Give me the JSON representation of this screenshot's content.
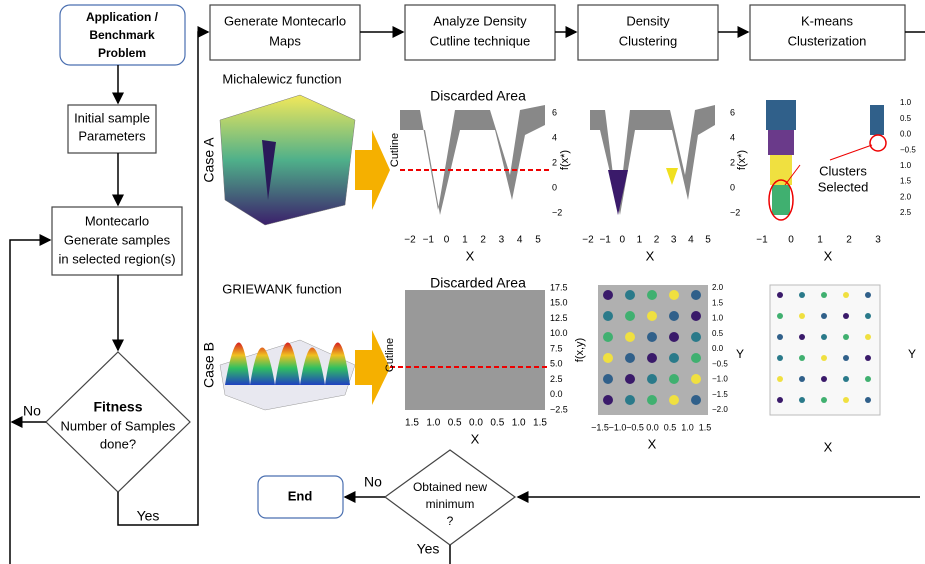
{
  "flow": {
    "start": [
      "Application /",
      "Benchmark",
      "Problem"
    ],
    "init": [
      "Initial sample",
      "Parameters"
    ],
    "montecarlo": [
      "Montecarlo",
      "Generate samples",
      "in selected region(s)"
    ],
    "fitness": {
      "title": "Fitness",
      "lines": [
        "Number of Samples",
        "done?"
      ],
      "no": "No",
      "yes": "Yes"
    },
    "steps": [
      [
        "Generate Montecarlo",
        "Maps"
      ],
      [
        "Analyze Density",
        "Cutline technique"
      ],
      [
        "Density",
        "Clustering"
      ],
      [
        "K-means",
        "Clusterization"
      ]
    ],
    "minimum": {
      "lines": [
        "Obtained new",
        "minimum",
        "?"
      ],
      "no": "No",
      "yes": "Yes"
    },
    "end": "End"
  },
  "case_a": {
    "label": "Case A",
    "function": "Michalewicz function",
    "discarded": "Discarded Area",
    "cutline": "Cutline",
    "x_label": "X",
    "f_label": "f(x*)",
    "x_ticks": [
      "−2",
      "−1",
      "0",
      "1",
      "2",
      "3",
      "4",
      "5"
    ],
    "y_ticks": [
      "6",
      "4",
      "2",
      "0",
      "−2"
    ],
    "kmeans_x_ticks": [
      "−1",
      "0",
      "1",
      "2",
      "3"
    ],
    "kmeans_y_ticks": [
      "1.0",
      "0.5",
      "0.0",
      "−0.5",
      "1.0",
      "1.5",
      "2.0",
      "2.5"
    ],
    "clusters": [
      "Clusters",
      "Selected"
    ]
  },
  "case_b": {
    "label": "Case B",
    "function": "GRIEWANK function",
    "discarded": "Discarded Area",
    "cutline": "Cutline",
    "x_label": "X",
    "y_label": "Y",
    "f_label": "f(x,y)",
    "x_ticks": [
      "1.5",
      "1.0",
      "0.5",
      "0.0",
      "0.5",
      "1.0",
      "1.5"
    ],
    "y_ticks": [
      "17.5",
      "15.0",
      "12.5",
      "10.0",
      "7.5",
      "5.0",
      "2.5",
      "0.0",
      "−2.5"
    ],
    "cluster_x_ticks": [
      "−1.5",
      "−1.0",
      "−0.5",
      "0.0",
      "0.5",
      "1.0",
      "1.5"
    ],
    "cluster_y_ticks": [
      "2.0",
      "1.5",
      "1.0",
      "0.5",
      "0.0",
      "−0.5",
      "−1.0",
      "−1.5",
      "−2.0"
    ]
  }
}
